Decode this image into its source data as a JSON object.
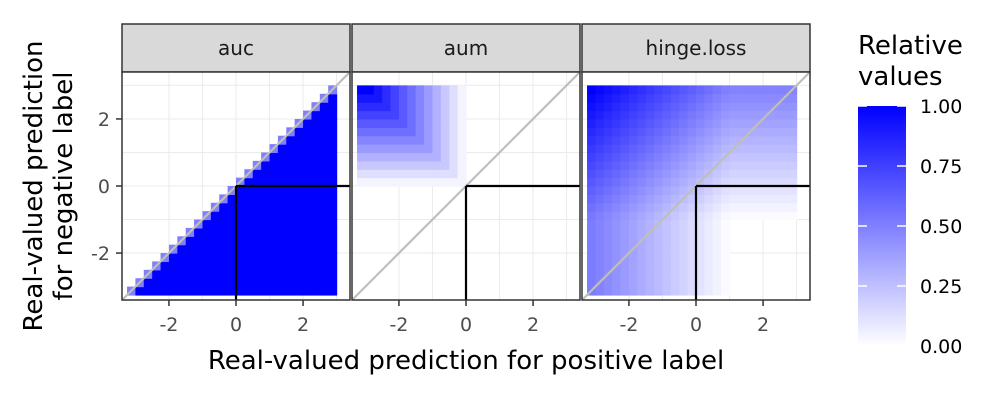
{
  "chart_data": {
    "type": "heatmap",
    "facets": [
      {
        "label": "auc",
        "metric": "auc"
      },
      {
        "label": "aum",
        "metric": "aum"
      },
      {
        "label": "hinge.loss",
        "metric": "hinge.loss"
      }
    ],
    "x_axis": {
      "label": "Real-valued prediction for positive label",
      "ticks": [
        -2,
        0,
        2
      ],
      "tick_labels": [
        "-2",
        "0",
        "2"
      ],
      "range": [
        -3.4,
        3.4
      ]
    },
    "y_axis": {
      "label_line1": "Real-valued prediction",
      "label_line2": "for negative label",
      "ticks": [
        -2,
        0,
        2
      ],
      "tick_labels": [
        "-2",
        "0",
        "2"
      ],
      "range": [
        -3.4,
        3.4
      ]
    },
    "grid": {
      "min": -3.125,
      "max": 3.125,
      "step": 0.25,
      "cells_per_axis": 25
    },
    "color_scale": {
      "low": "#ffffff",
      "high": "#0000ff",
      "limits": [
        0,
        1
      ]
    },
    "reference_lines": {
      "diagonal_color": "#bebebe",
      "quadrant_color": "#000000",
      "quadrant_corner": [
        0,
        0
      ]
    },
    "legend": {
      "title_line1": "Relative",
      "title_line2": "values",
      "breaks": [
        1.0,
        0.75,
        0.5,
        0.25,
        0.0
      ],
      "break_labels": [
        "1.00",
        "0.75",
        "0.50",
        "0.25",
        "0.00"
      ],
      "position": "right"
    }
  }
}
